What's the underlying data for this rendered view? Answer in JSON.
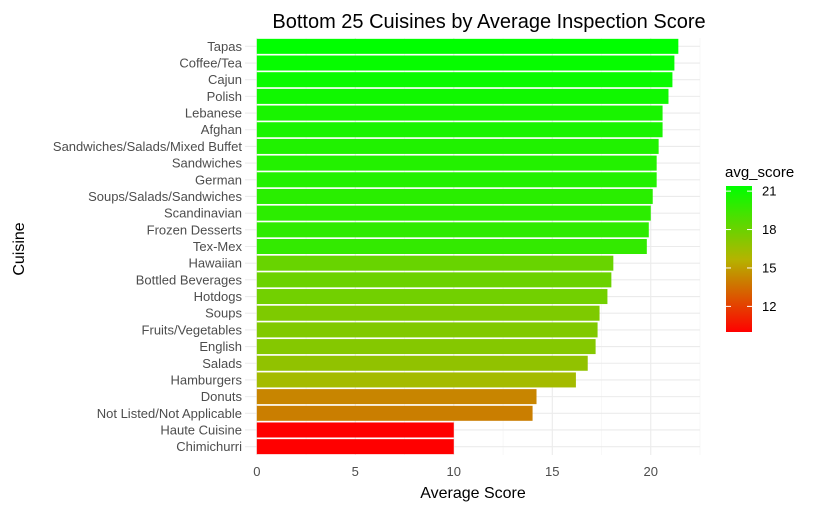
{
  "chart_data": {
    "type": "bar",
    "orientation": "horizontal",
    "title": "Bottom 25 Cuisines by Average Inspection Score",
    "xlabel": "Average Score",
    "ylabel": "Cuisine",
    "xlim": [
      -0.6,
      22.5
    ],
    "x_ticks": [
      0,
      5,
      10,
      15,
      20
    ],
    "grid": true,
    "legend": {
      "title": "avg_score",
      "position": "right",
      "ticks": [
        12,
        15,
        18,
        21
      ],
      "range": [
        10.0,
        21.4
      ],
      "low_color": "#ff0000",
      "high_color": "#00ff00"
    },
    "categories": [
      "Tapas",
      "Coffee/Tea",
      "Cajun",
      "Polish",
      "Lebanese",
      "Afghan",
      "Sandwiches/Salads/Mixed Buffet",
      "Sandwiches",
      "German",
      "Soups/Salads/Sandwiches",
      "Scandinavian",
      "Frozen Desserts",
      "Tex-Mex",
      "Hawaiian",
      "Bottled Beverages",
      "Hotdogs",
      "Soups",
      "Fruits/Vegetables",
      "English",
      "Salads",
      "Hamburgers",
      "Donuts",
      "Not Listed/Not Applicable",
      "Haute Cuisine",
      "Chimichurri"
    ],
    "values": [
      21.4,
      21.2,
      21.1,
      20.9,
      20.6,
      20.6,
      20.4,
      20.3,
      20.3,
      20.1,
      20.0,
      19.9,
      19.8,
      18.1,
      18.0,
      17.8,
      17.4,
      17.3,
      17.2,
      16.8,
      16.2,
      14.2,
      14.0,
      10.0,
      10.0
    ]
  }
}
